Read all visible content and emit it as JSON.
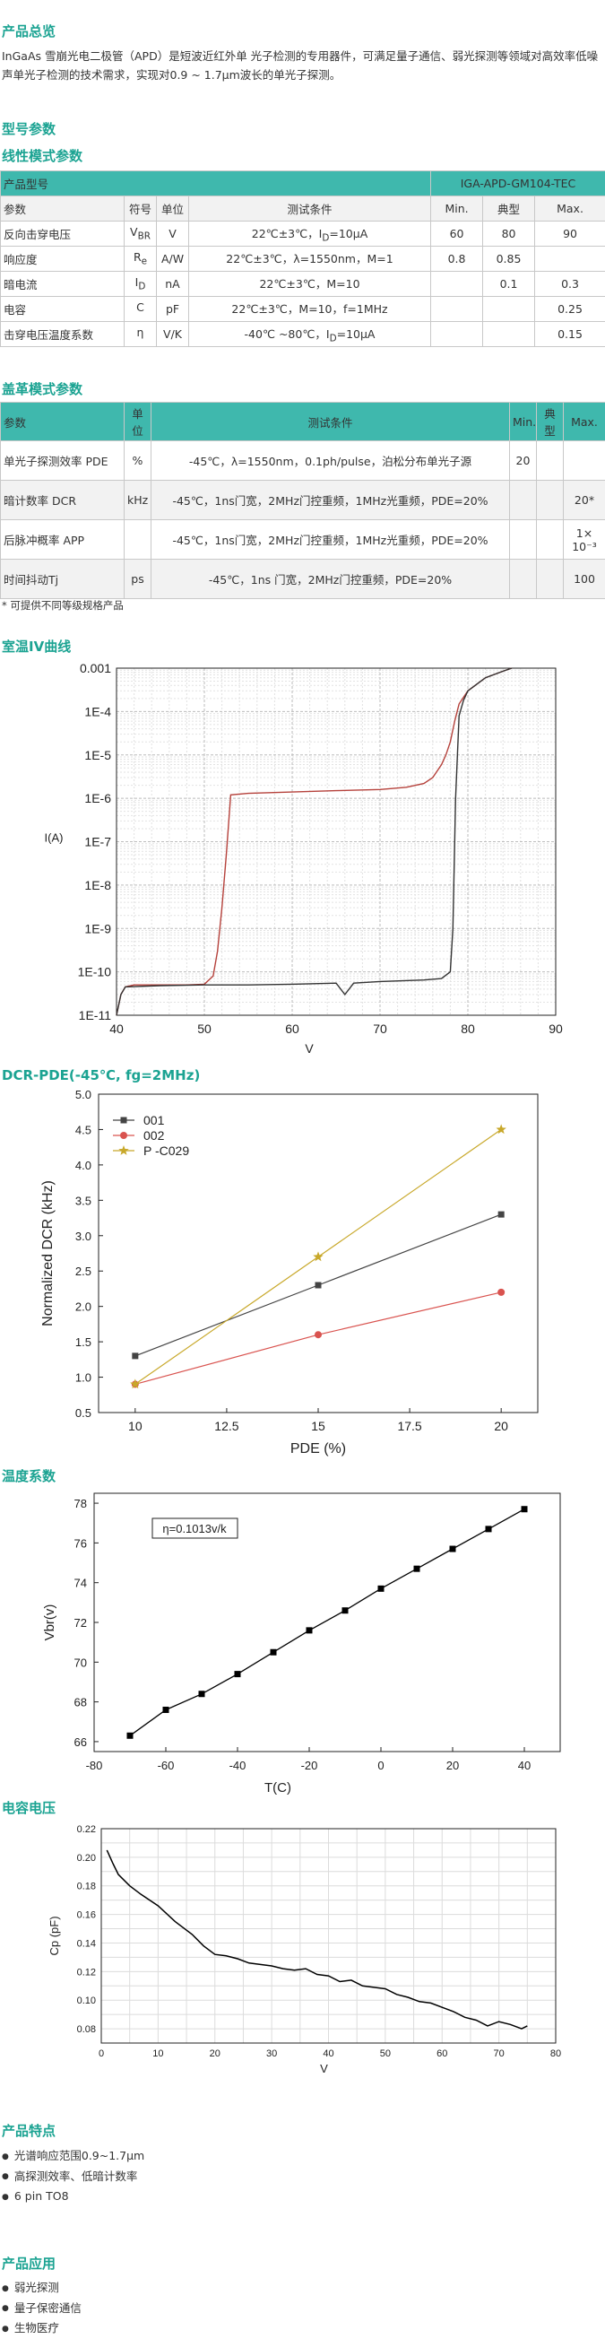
{
  "overview": {
    "title": "产品总览",
    "text": "InGaAs 雪崩光电二极管（APD）是短波近红外单 光子检测的专用器件，可满足量子通信、弱光探测等领域对高效率低噪声单光子检测的技术需求，实现对0.9 ~ 1.7μm波长的单光子探测。"
  },
  "model_params_title": "型号参数",
  "linear": {
    "title": "线性模式参数",
    "model_label": "产品型号",
    "model_value": "IGA-APD-GM104-TEC",
    "headers": [
      "参数",
      "符号",
      "单位",
      "测试条件",
      "Min.",
      "典型",
      "Max."
    ],
    "rows": [
      {
        "param": "反向击穿电压",
        "sym": "V",
        "sub": "BR",
        "unit": "V",
        "cond": "22℃±3℃，I",
        "cond_sub": "D",
        "cond2": "=10μA",
        "min": "60",
        "typ": "80",
        "max": "90"
      },
      {
        "param": "响应度",
        "sym": "R",
        "sub": "e",
        "unit": "A/W",
        "cond": "22℃±3℃，λ=1550nm，M=1",
        "cond_sub": "",
        "cond2": "",
        "min": "0.8",
        "typ": "0.85",
        "max": ""
      },
      {
        "param": "暗电流",
        "sym": "I",
        "sub": "D",
        "unit": "nA",
        "cond": "22℃±3℃，M=10",
        "cond_sub": "",
        "cond2": "",
        "min": "",
        "typ": "0.1",
        "max": "0.3"
      },
      {
        "param": "电容",
        "sym": "C",
        "sub": "",
        "unit": "pF",
        "cond": "22℃±3℃，M=10，f=1MHz",
        "cond_sub": "",
        "cond2": "",
        "min": "",
        "typ": "",
        "max": "0.25"
      },
      {
        "param": "击穿电压温度系数",
        "sym": "η",
        "sub": "",
        "unit": "V/K",
        "cond": "-40℃ ~80℃，I",
        "cond_sub": "D",
        "cond2": "=10μA",
        "min": "",
        "typ": "",
        "max": "0.15"
      }
    ]
  },
  "geiger": {
    "title": "盖革模式参数",
    "headers": [
      "参数",
      "单位",
      "测试条件",
      "Min.",
      "典型",
      "Max."
    ],
    "rows": [
      {
        "param": "单光子探测效率 PDE",
        "unit": "%",
        "cond": "-45℃，λ=1550nm，0.1ph/pulse，泊松分布单光子源",
        "min": "20",
        "typ": "",
        "max": ""
      },
      {
        "param": "暗计数率 DCR",
        "unit": "kHz",
        "cond": "-45℃，1ns门宽，2MHz门控重频，1MHz光重频，PDE=20%",
        "min": "",
        "typ": "",
        "max": "20*"
      },
      {
        "param": "后脉冲概率 APP",
        "unit": "",
        "cond": "-45℃，1ns门宽，2MHz门控重频，1MHz光重频，PDE=20%",
        "min": "",
        "typ": "",
        "max": "1× 10⁻³"
      },
      {
        "param": "时间抖动Tj",
        "unit": "ps",
        "cond": "-45℃，1ns 门宽，2MHz门控重频，PDE=20%",
        "min": "",
        "typ": "",
        "max": "100"
      }
    ],
    "note": "* 可提供不同等级规格产品"
  },
  "chart_data": [
    {
      "type": "line",
      "title": "室温IV曲线",
      "xlabel": "V",
      "ylabel": "I(A)",
      "xlim": [
        40,
        90
      ],
      "ylim": [
        1e-11,
        0.001
      ],
      "yscale": "log",
      "xticks": [
        "40",
        "50",
        "60",
        "70",
        "80",
        "90"
      ],
      "yticks": [
        "1E-11",
        "1E-10",
        "1E-9",
        "1E-8",
        "1E-7",
        "1E-6",
        "1E-5",
        "1E-4",
        "0.001"
      ],
      "grid": true,
      "series": [
        {
          "color": "#b5413b",
          "x": [
            40,
            40.5,
            41,
            42,
            44,
            46,
            48,
            50,
            51,
            51.5,
            52,
            52.5,
            53,
            55,
            60,
            65,
            70,
            73,
            75,
            76,
            77,
            77.5,
            78,
            78.5,
            79,
            80,
            82,
            84,
            85
          ],
          "y": [
            1e-11,
            3e-11,
            4.5e-11,
            5e-11,
            5e-11,
            5e-11,
            5e-11,
            5.2e-11,
            8e-11,
            3e-10,
            3e-09,
            5e-08,
            1.2e-06,
            1.3e-06,
            1.4e-06,
            1.5e-06,
            1.6e-06,
            1.8e-06,
            2.2e-06,
            3e-06,
            6e-06,
            1e-05,
            2e-05,
            6e-05,
            0.00015,
            0.0003,
            0.0006,
            0.00085,
            0.001
          ]
        },
        {
          "color": "#333333",
          "x": [
            40,
            40.5,
            41,
            45,
            50,
            55,
            60,
            65,
            66,
            67,
            70,
            75,
            77,
            78,
            78.3,
            78.6,
            79,
            79.5,
            80,
            82,
            84,
            85
          ],
          "y": [
            1e-11,
            3e-11,
            4.5e-11,
            4.8e-11,
            5e-11,
            5e-11,
            5.2e-11,
            5.5e-11,
            3e-11,
            5.5e-11,
            6e-11,
            6.5e-11,
            7e-11,
            1e-10,
            1e-09,
            1e-06,
            8e-05,
            0.00018,
            0.0003,
            0.0006,
            0.00085,
            0.001
          ]
        }
      ]
    },
    {
      "type": "line",
      "title": "DCR-PDE(-45℃, fg=2MHz)",
      "xlabel": "PDE (%)",
      "ylabel": "Normalized DCR (kHz)",
      "xlim": [
        9,
        21
      ],
      "ylim": [
        0.5,
        5.0
      ],
      "xticks": [
        10,
        12.5,
        15,
        17.5,
        20
      ],
      "yticks": [
        0.5,
        1.0,
        1.5,
        2.0,
        2.5,
        3.0,
        3.5,
        4.0,
        4.5,
        5.0
      ],
      "legend": "top-left",
      "series": [
        {
          "name": "001",
          "color": "#444444",
          "marker": "square",
          "x": [
            10,
            15,
            20
          ],
          "values": [
            1.3,
            2.3,
            3.3
          ]
        },
        {
          "name": "002",
          "color": "#d9534f",
          "marker": "circle",
          "x": [
            10,
            15,
            20
          ],
          "values": [
            0.9,
            1.6,
            2.2
          ]
        },
        {
          "name": "P  -C029",
          "color": "#c8a82a",
          "marker": "star",
          "x": [
            10,
            15,
            20
          ],
          "values": [
            0.9,
            2.7,
            4.5
          ]
        }
      ]
    },
    {
      "type": "line",
      "title": "温度系数",
      "xlabel": "T(C)",
      "ylabel": "Vbr(v)",
      "xlim": [
        -80,
        50
      ],
      "ylim": [
        65.5,
        78.5
      ],
      "xticks": [
        -80,
        -60,
        -40,
        -20,
        0,
        20,
        40
      ],
      "yticks": [
        66,
        68,
        70,
        72,
        74,
        76,
        78
      ],
      "annotation": "η=0.1013v/k",
      "series": [
        {
          "color": "#000000",
          "marker": "square",
          "x": [
            -70,
            -60,
            -50,
            -40,
            -30,
            -20,
            -10,
            0,
            10,
            20,
            30,
            40
          ],
          "values": [
            66.3,
            67.6,
            68.4,
            69.4,
            70.5,
            71.6,
            72.6,
            73.7,
            74.7,
            75.7,
            76.7,
            77.7
          ]
        }
      ]
    },
    {
      "type": "line",
      "title": "电容电压",
      "xlabel": "V",
      "ylabel": "Cp (pF)",
      "xlim": [
        0,
        80
      ],
      "ylim": [
        0.07,
        0.22
      ],
      "xticks": [
        0,
        10,
        20,
        30,
        40,
        50,
        60,
        70,
        80
      ],
      "yticks": [
        0.08,
        0.1,
        0.12,
        0.14,
        0.16,
        0.18,
        0.2,
        0.22
      ],
      "grid": true,
      "series": [
        {
          "color": "#000000",
          "x": [
            1,
            2,
            3,
            5,
            7,
            10,
            13,
            16,
            18,
            20,
            22,
            24,
            26,
            28,
            30,
            32,
            34,
            36,
            38,
            40,
            42,
            44,
            46,
            48,
            50,
            52,
            54,
            56,
            58,
            60,
            62,
            64,
            66,
            68,
            70,
            72,
            74,
            75
          ],
          "values": [
            0.205,
            0.196,
            0.188,
            0.18,
            0.174,
            0.166,
            0.155,
            0.146,
            0.138,
            0.132,
            0.131,
            0.129,
            0.126,
            0.125,
            0.124,
            0.122,
            0.121,
            0.122,
            0.118,
            0.117,
            0.113,
            0.114,
            0.11,
            0.109,
            0.108,
            0.104,
            0.102,
            0.099,
            0.098,
            0.095,
            0.092,
            0.088,
            0.086,
            0.082,
            0.085,
            0.083,
            0.08,
            0.082
          ]
        }
      ]
    }
  ],
  "features": {
    "title": "产品特点",
    "items": [
      "光谱响应范围0.9~1.7μm",
      "高探测效率、低暗计数率",
      "6 pin TO8"
    ]
  },
  "applications": {
    "title": "产品应用",
    "items": [
      "弱光探测",
      "量子保密通信",
      "生物医疗"
    ]
  },
  "colors": {
    "accent": "#1ba392",
    "table_header": "#3fb8ad"
  }
}
